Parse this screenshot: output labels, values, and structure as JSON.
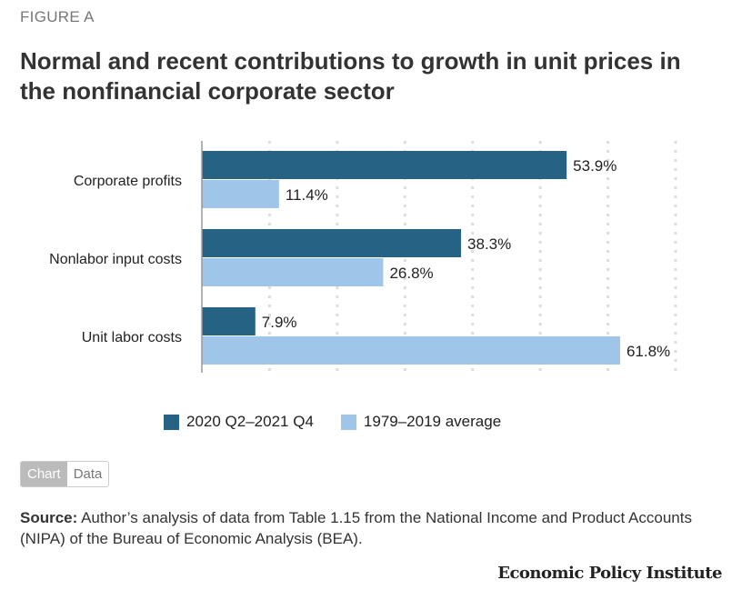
{
  "figure_label": "FIGURE A",
  "title": "Normal and recent contributions to growth in unit prices in the nonfinancial corporate sector",
  "chart_data": {
    "type": "bar",
    "orientation": "horizontal",
    "categories": [
      "Corporate profits",
      "Nonlabor input costs",
      "Unit labor costs"
    ],
    "series": [
      {
        "name": "2020 Q2–2021 Q4",
        "values": [
          53.9,
          38.3,
          7.9
        ],
        "color": "#266283",
        "labels": [
          "53.9%",
          "38.3%",
          "7.9%"
        ]
      },
      {
        "name": "1979–2019 average",
        "values": [
          11.4,
          26.8,
          61.8
        ],
        "color": "#9fc5e8",
        "labels": [
          "11.4%",
          "26.8%",
          "61.8%"
        ]
      }
    ],
    "xlim": [
      0,
      70
    ],
    "grid": true,
    "legend_position": "bottom"
  },
  "toggle": {
    "chart": "Chart",
    "data": "Data"
  },
  "source": {
    "label": "Source:",
    "text": " Author’s analysis of data from Table 1.15 from the National Income and Product Accounts (NIPA) of the Bureau of Economic Analysis (BEA)."
  },
  "logo": "Economic Policy Institute"
}
